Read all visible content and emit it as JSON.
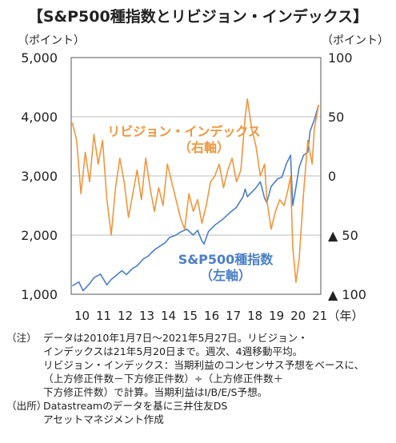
{
  "title": "【S&P500種指数とリビジョン・インデックス】",
  "units": {
    "left": "（ポイント）",
    "right": "（ポイント）",
    "x": "（年）"
  },
  "chart_data": {
    "type": "line",
    "title": "【S&P500種指数とリビジョン・インデックス】",
    "x_tick_labels": [
      "10",
      "11",
      "12",
      "13",
      "14",
      "15",
      "16",
      "17",
      "18",
      "19",
      "20",
      "21"
    ],
    "xlabel": "（年）",
    "ylabel_left": "（ポイント）",
    "ylabel_right": "（ポイント）",
    "y_left": {
      "range": [
        1000,
        5000
      ],
      "ticks": [
        "5,000",
        "4,000",
        "3,000",
        "2,000",
        "1,000"
      ]
    },
    "y_right": {
      "range": [
        -100,
        100
      ],
      "ticks": [
        "100",
        "50",
        "0",
        "▲ 50",
        "▲ 100"
      ]
    },
    "grid": "horizontal",
    "series": [
      {
        "name": "S&P500種指数（左軸）",
        "axis": "left",
        "color": "#4a7fc8",
        "points": [
          [
            2010.0,
            1140
          ],
          [
            2010.3,
            1210
          ],
          [
            2010.5,
            1060
          ],
          [
            2010.8,
            1180
          ],
          [
            2011.0,
            1280
          ],
          [
            2011.3,
            1340
          ],
          [
            2011.6,
            1160
          ],
          [
            2011.8,
            1250
          ],
          [
            2012.0,
            1310
          ],
          [
            2012.3,
            1400
          ],
          [
            2012.5,
            1330
          ],
          [
            2012.8,
            1440
          ],
          [
            2013.0,
            1480
          ],
          [
            2013.3,
            1600
          ],
          [
            2013.5,
            1640
          ],
          [
            2013.8,
            1750
          ],
          [
            2014.0,
            1800
          ],
          [
            2014.3,
            1870
          ],
          [
            2014.5,
            1960
          ],
          [
            2014.8,
            2000
          ],
          [
            2015.0,
            2050
          ],
          [
            2015.3,
            2100
          ],
          [
            2015.6,
            2000
          ],
          [
            2015.8,
            2080
          ],
          [
            2016.0,
            1900
          ],
          [
            2016.1,
            1850
          ],
          [
            2016.3,
            2060
          ],
          [
            2016.6,
            2170
          ],
          [
            2016.9,
            2250
          ],
          [
            2017.0,
            2280
          ],
          [
            2017.3,
            2380
          ],
          [
            2017.6,
            2470
          ],
          [
            2017.9,
            2650
          ],
          [
            2018.0,
            2780
          ],
          [
            2018.1,
            2650
          ],
          [
            2018.5,
            2800
          ],
          [
            2018.7,
            2900
          ],
          [
            2018.9,
            2620
          ],
          [
            2019.0,
            2550
          ],
          [
            2019.2,
            2820
          ],
          [
            2019.5,
            2950
          ],
          [
            2019.7,
            2980
          ],
          [
            2019.9,
            3200
          ],
          [
            2020.1,
            3350
          ],
          [
            2020.2,
            2500
          ],
          [
            2020.3,
            2700
          ],
          [
            2020.5,
            3150
          ],
          [
            2020.7,
            3350
          ],
          [
            2020.9,
            3400
          ],
          [
            2021.0,
            3750
          ],
          [
            2021.2,
            3950
          ],
          [
            2021.4,
            4200
          ]
        ]
      },
      {
        "name": "リビジョン・インデックス（右軸）",
        "axis": "right",
        "color": "#f0963c",
        "points": [
          [
            2010.0,
            45
          ],
          [
            2010.2,
            30
          ],
          [
            2010.4,
            -15
          ],
          [
            2010.6,
            20
          ],
          [
            2010.8,
            -5
          ],
          [
            2011.0,
            35
          ],
          [
            2011.2,
            10
          ],
          [
            2011.4,
            30
          ],
          [
            2011.6,
            -20
          ],
          [
            2011.8,
            -50
          ],
          [
            2012.0,
            -10
          ],
          [
            2012.2,
            15
          ],
          [
            2012.4,
            -5
          ],
          [
            2012.6,
            -35
          ],
          [
            2012.8,
            -15
          ],
          [
            2013.0,
            5
          ],
          [
            2013.2,
            -20
          ],
          [
            2013.4,
            15
          ],
          [
            2013.6,
            -10
          ],
          [
            2013.8,
            -30
          ],
          [
            2014.0,
            -10
          ],
          [
            2014.2,
            -25
          ],
          [
            2014.4,
            10
          ],
          [
            2014.6,
            -5
          ],
          [
            2014.8,
            -20
          ],
          [
            2015.0,
            -35
          ],
          [
            2015.2,
            -45
          ],
          [
            2015.4,
            -15
          ],
          [
            2015.6,
            -30
          ],
          [
            2015.8,
            -20
          ],
          [
            2016.0,
            -40
          ],
          [
            2016.2,
            -25
          ],
          [
            2016.4,
            -5
          ],
          [
            2016.6,
            0
          ],
          [
            2016.8,
            10
          ],
          [
            2017.0,
            -10
          ],
          [
            2017.2,
            5
          ],
          [
            2017.4,
            15
          ],
          [
            2017.6,
            -5
          ],
          [
            2017.8,
            5
          ],
          [
            2018.0,
            50
          ],
          [
            2018.1,
            65
          ],
          [
            2018.3,
            40
          ],
          [
            2018.5,
            25
          ],
          [
            2018.7,
            0
          ],
          [
            2018.9,
            10
          ],
          [
            2019.0,
            -20
          ],
          [
            2019.2,
            -45
          ],
          [
            2019.4,
            -30
          ],
          [
            2019.6,
            -20
          ],
          [
            2019.8,
            -25
          ],
          [
            2020.0,
            -10
          ],
          [
            2020.1,
            0
          ],
          [
            2020.2,
            -60
          ],
          [
            2020.35,
            -90
          ],
          [
            2020.5,
            -70
          ],
          [
            2020.7,
            -15
          ],
          [
            2020.9,
            30
          ],
          [
            2021.1,
            10
          ],
          [
            2021.2,
            40
          ],
          [
            2021.4,
            60
          ]
        ]
      }
    ],
    "annotations": [
      {
        "text": "リビジョン・インデックス",
        "color": "#f0963c"
      },
      {
        "text": "（右軸）",
        "color": "#f0963c"
      },
      {
        "text": "S&P500種指数",
        "color": "#4a7fc8"
      },
      {
        "text": "（左軸）",
        "color": "#4a7fc8"
      }
    ]
  },
  "notes": {
    "label_note": "（注）",
    "note_lines": [
      "データは2010年1月7日～2021年5月27日。リビジョン・",
      "インデックスは21年5月20日まで。週次、4週移動平均。",
      "リビジョン・インデックス：当期利益のコンセンサス予想をベースに、",
      "（上方修正件数－下方修正件数）÷（上方修正件数＋",
      "下方修正件数）で計算。当期利益はI/B/E/S予想。"
    ],
    "label_source": "（出所）",
    "source_lines": [
      "Datastreamのデータを基に三井住友DS",
      "アセットマネジメント作成"
    ]
  }
}
